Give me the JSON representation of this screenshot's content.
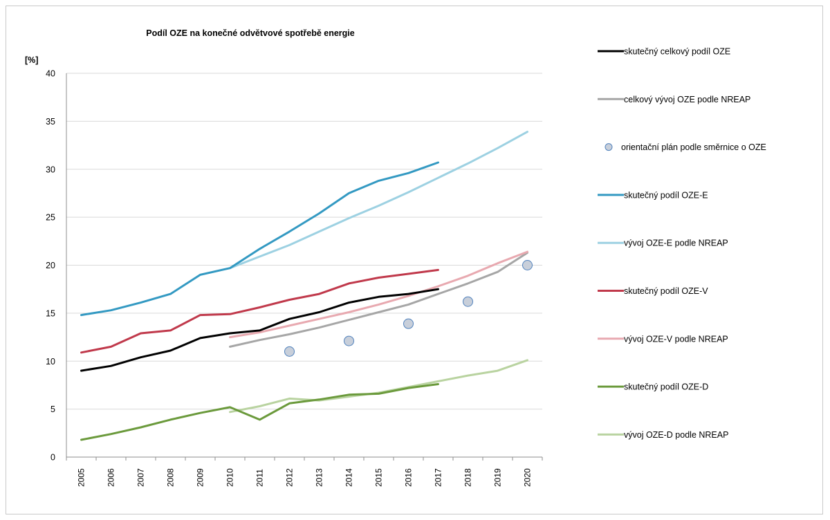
{
  "chart_data": {
    "type": "line",
    "title": "Podíl OZE na konečné odvětvové spotřebě energie",
    "ylabel": "[%]",
    "xlabel": "",
    "ylim": [
      0,
      40
    ],
    "yticks": [
      0,
      5,
      10,
      15,
      20,
      25,
      30,
      35,
      40
    ],
    "x": [
      "2005",
      "2006",
      "2007",
      "2008",
      "2009",
      "2010",
      "2011",
      "2012",
      "2013",
      "2014",
      "2015",
      "2016",
      "2017",
      "2018",
      "2019",
      "2020"
    ],
    "grid": true,
    "legend_position": "right",
    "series": [
      {
        "name": "skutečný celkový podíl OZE",
        "color": "#000000",
        "kind": "line",
        "values": [
          9.0,
          9.5,
          10.4,
          11.1,
          12.4,
          12.9,
          13.2,
          14.4,
          15.1,
          16.1,
          16.7,
          17.0,
          17.5,
          null,
          null,
          null
        ]
      },
      {
        "name": "celkový vývoj OZE podle NREAP",
        "color": "#a6a6a6",
        "kind": "line",
        "values": [
          null,
          null,
          null,
          null,
          null,
          11.5,
          12.2,
          12.8,
          13.5,
          14.3,
          15.1,
          15.9,
          17.0,
          18.1,
          19.3,
          21.3
        ]
      },
      {
        "name": "orientační plán podle směrnice o OZE",
        "color": "#c8cfda",
        "stroke": "#4f81bd",
        "kind": "marker",
        "values": [
          null,
          null,
          null,
          null,
          null,
          null,
          null,
          11.0,
          null,
          12.1,
          null,
          13.9,
          null,
          16.2,
          null,
          20.0
        ]
      },
      {
        "name": "skutečný podíl OZE-E",
        "color": "#3399c2",
        "kind": "line",
        "values": [
          14.8,
          15.3,
          16.1,
          17.0,
          19.0,
          19.7,
          21.7,
          23.5,
          25.4,
          27.5,
          28.8,
          29.6,
          30.7,
          null,
          null,
          null
        ]
      },
      {
        "name": "vývoj OZE-E podle NREAP",
        "color": "#9dd1e2",
        "kind": "line",
        "values": [
          null,
          null,
          null,
          null,
          null,
          19.7,
          20.9,
          22.1,
          23.5,
          24.9,
          26.2,
          27.6,
          29.1,
          30.6,
          32.2,
          33.9
        ]
      },
      {
        "name": "skutečný podíl OZE-V",
        "color": "#c0394b",
        "kind": "line",
        "values": [
          10.9,
          11.5,
          12.9,
          13.2,
          14.8,
          14.9,
          15.6,
          16.4,
          17.0,
          18.1,
          18.7,
          19.1,
          19.5,
          null,
          null,
          null
        ]
      },
      {
        "name": "vývoj OZE-V podle NREAP",
        "color": "#e8a9b0",
        "kind": "line",
        "values": [
          null,
          null,
          null,
          null,
          null,
          12.5,
          13.0,
          13.7,
          14.4,
          15.1,
          15.9,
          16.8,
          17.8,
          18.9,
          20.2,
          21.4
        ]
      },
      {
        "name": "skutečný podíl OZE-D",
        "color": "#6b9a3c",
        "kind": "line",
        "values": [
          1.8,
          2.4,
          3.1,
          3.9,
          4.6,
          5.2,
          3.9,
          5.6,
          6.0,
          6.5,
          6.6,
          7.2,
          7.6,
          null,
          null,
          null
        ]
      },
      {
        "name": "vývoj OZE-D podle NREAP",
        "color": "#b9d3a0",
        "kind": "line",
        "values": [
          null,
          null,
          null,
          null,
          null,
          4.7,
          5.3,
          6.1,
          5.9,
          6.3,
          6.7,
          7.3,
          7.9,
          8.5,
          9.0,
          10.1
        ]
      }
    ]
  }
}
